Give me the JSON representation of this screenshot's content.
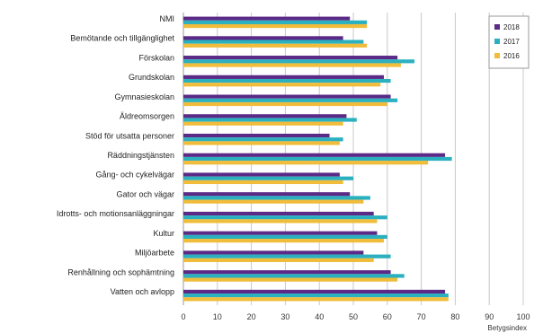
{
  "chart_data": {
    "type": "bar",
    "orientation": "horizontal",
    "xlabel": "Betygsindex",
    "xlim": [
      0,
      100
    ],
    "xticks": [
      0,
      10,
      20,
      30,
      40,
      50,
      60,
      70,
      80,
      90,
      100
    ],
    "categories": [
      "NMI",
      "Bemötande och tillgänglighet",
      "Förskolan",
      "Grundskolan",
      "Gymnasieskolan",
      "Äldreomsorgen",
      "Stöd för utsatta personer",
      "Räddningstjänsten",
      "Gång- och cykelvägar",
      "Gator och vägar",
      "Idrotts- och motionsanläggningar",
      "Kultur",
      "Miljöarbete",
      "Renhållning och sophämtning",
      "Vatten och avlopp"
    ],
    "series": [
      {
        "name": "2018",
        "color": "#5b2a86",
        "values": [
          49,
          47,
          63,
          59,
          61,
          48,
          43,
          77,
          46,
          49,
          56,
          57,
          53,
          61,
          77
        ]
      },
      {
        "name": "2017",
        "color": "#2bb0c0",
        "values": [
          54,
          53,
          68,
          61,
          63,
          51,
          47,
          79,
          50,
          55,
          60,
          60,
          61,
          65,
          78
        ]
      },
      {
        "name": "2016",
        "color": "#f0bc3a",
        "values": [
          54,
          54,
          64,
          58,
          60,
          47,
          46,
          72,
          47,
          53,
          57,
          59,
          56,
          63,
          78
        ]
      }
    ],
    "grid": true,
    "legend": "top-right"
  }
}
